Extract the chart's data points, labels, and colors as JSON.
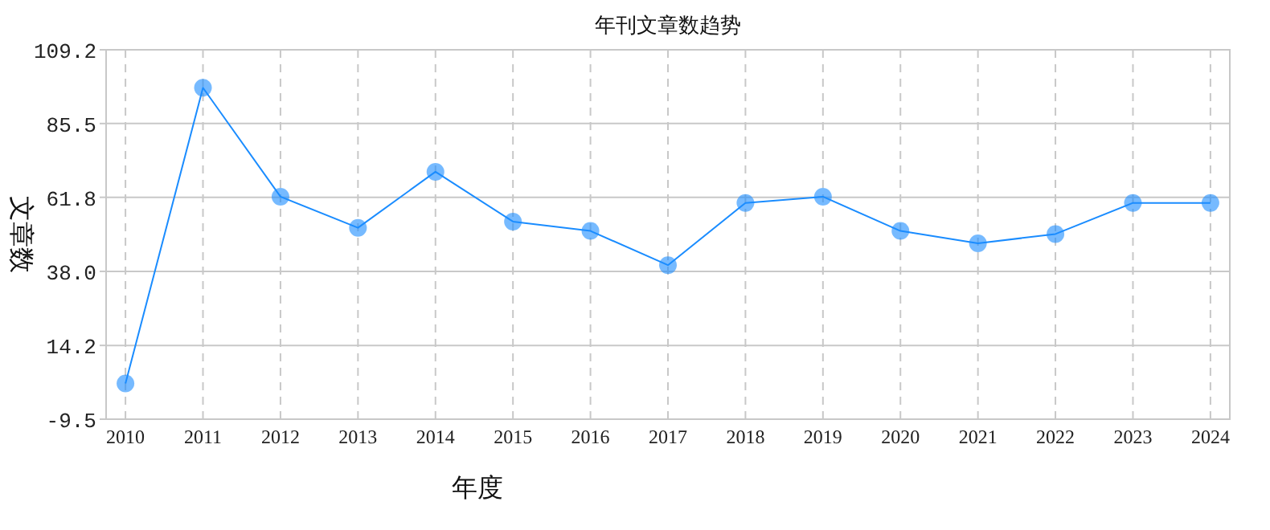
{
  "chart_data": {
    "type": "line",
    "title": "年刊文章数趋势",
    "xlabel": "年度",
    "ylabel": "文章数",
    "categories": [
      "2010",
      "2011",
      "2012",
      "2013",
      "2014",
      "2015",
      "2016",
      "2017",
      "2018",
      "2019",
      "2020",
      "2021",
      "2022",
      "2023",
      "2024"
    ],
    "series": [
      {
        "color": "#1a8cff",
        "values": [
          2,
          97,
          62,
          52,
          70,
          54,
          51,
          40,
          60,
          62,
          51,
          47,
          50,
          60,
          60
        ]
      }
    ],
    "marker": "circle",
    "line_style": "solid",
    "grid": true,
    "ylim": [
      -9.5,
      109.2
    ],
    "yticks": [
      -9.5,
      14.2,
      {
        "value": 38,
        "label": "38.0"
      },
      61.8,
      85.5,
      109.2
    ]
  }
}
